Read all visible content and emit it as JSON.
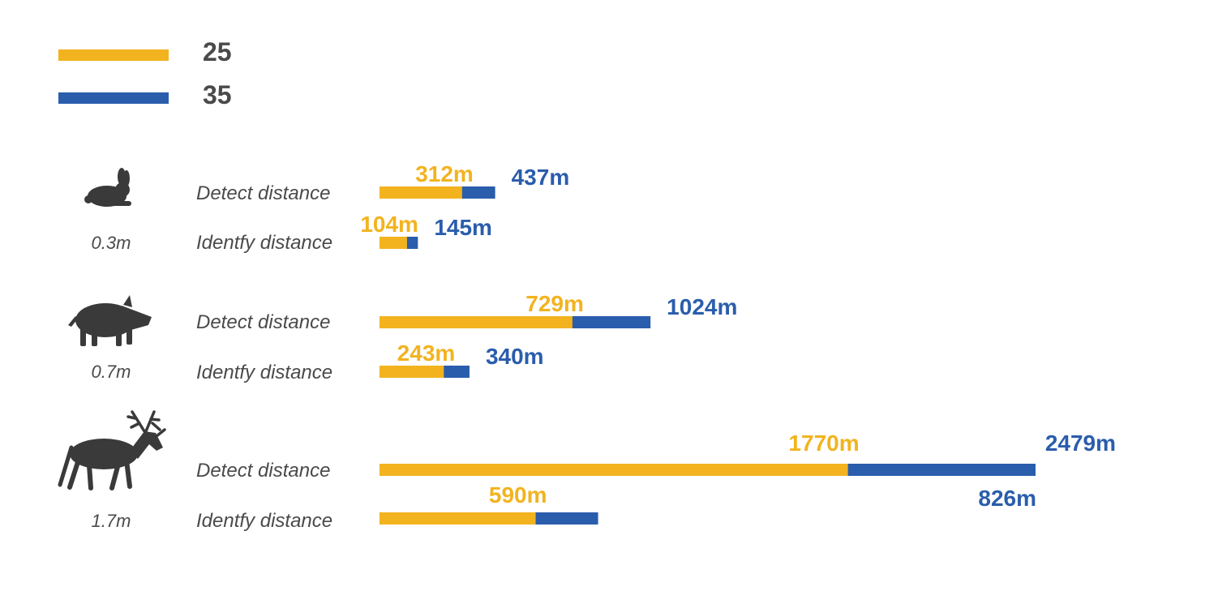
{
  "colors": {
    "s25": "#F2B31F",
    "s35": "#2A5DAC",
    "text": "#4a4a4a",
    "icon": "#3a3a3a"
  },
  "legend": [
    {
      "label": "25",
      "color": "#F2B31F"
    },
    {
      "label": "35",
      "color": "#2A5DAC"
    }
  ],
  "chart_data": {
    "type": "bar",
    "orientation": "horizontal",
    "stacking": "overlay",
    "title": "",
    "xlabel": "",
    "ylabel": "",
    "legend_position": "top-left",
    "grid": false,
    "xlim": [
      0,
      2479
    ],
    "groups": [
      {
        "icon": "rabbit-icon",
        "size_label": "0.3m",
        "rows": [
          {
            "label": "Detect distance",
            "values": [
              312,
              437
            ],
            "value_labels": [
              "312m",
              "437m"
            ]
          },
          {
            "label": "Identfy distance",
            "values": [
              104,
              145
            ],
            "value_labels": [
              "104m",
              "145m"
            ]
          }
        ]
      },
      {
        "icon": "boar-icon",
        "size_label": "0.7m",
        "rows": [
          {
            "label": "Detect distance",
            "values": [
              729,
              1024
            ],
            "value_labels": [
              "729m",
              "1024m"
            ]
          },
          {
            "label": "Identfy distance",
            "values": [
              243,
              340
            ],
            "value_labels": [
              "243m",
              "340m"
            ]
          }
        ]
      },
      {
        "icon": "caribou-icon",
        "size_label": "1.7m",
        "rows": [
          {
            "label": "Detect distance",
            "values": [
              1770,
              2479
            ],
            "value_labels": [
              "1770m",
              "2479m"
            ]
          },
          {
            "label": "Identfy distance",
            "values": [
              590,
              826
            ],
            "value_labels": [
              "590m",
              "826m"
            ]
          }
        ]
      }
    ]
  }
}
